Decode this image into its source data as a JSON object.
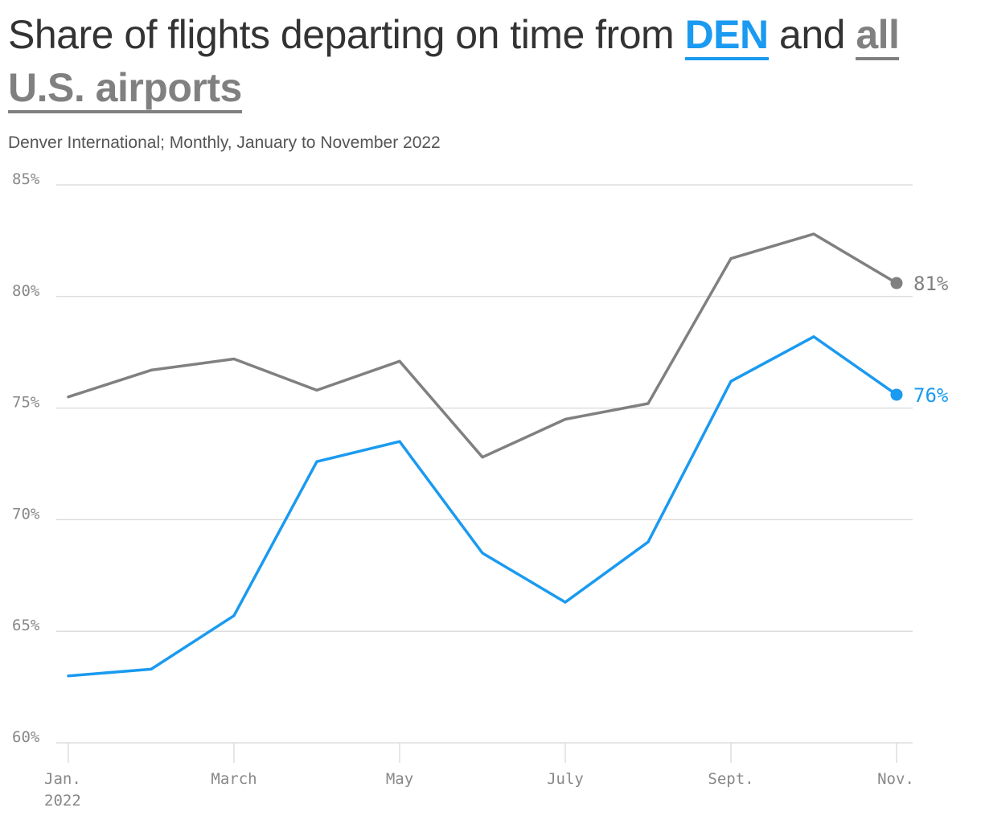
{
  "title": {
    "prefix": "Share of flights departing on time from ",
    "den": "DEN",
    "middle": " and ",
    "us": "all U.S. airports"
  },
  "subtitle": "Denver International; Monthly, January to November 2022",
  "colors": {
    "den": "#1a9af0",
    "us": "#808080",
    "grid": "#dddddd",
    "text": "#333333"
  },
  "chart_data": {
    "type": "line",
    "x": [
      "Jan. 2022",
      "Feb. 2022",
      "March 2022",
      "April 2022",
      "May 2022",
      "June 2022",
      "July 2022",
      "Aug. 2022",
      "Sept. 2022",
      "Oct. 2022",
      "Nov. 2022"
    ],
    "x_tick_labels": [
      {
        "index": 0,
        "lines": [
          "Jan.",
          "2022"
        ]
      },
      {
        "index": 2,
        "lines": [
          "March"
        ]
      },
      {
        "index": 4,
        "lines": [
          "May"
        ]
      },
      {
        "index": 6,
        "lines": [
          "July"
        ]
      },
      {
        "index": 8,
        "lines": [
          "Sept."
        ]
      },
      {
        "index": 10,
        "lines": [
          "Nov."
        ]
      }
    ],
    "y_ticks": [
      60,
      65,
      70,
      75,
      80,
      85
    ],
    "y_tick_labels": [
      "60%",
      "65%",
      "70%",
      "75%",
      "80%",
      "85%"
    ],
    "ylim": [
      60,
      85
    ],
    "grid": true,
    "series": [
      {
        "key": "us",
        "values": [
          75.5,
          76.7,
          77.2,
          75.8,
          77.1,
          72.8,
          74.5,
          75.2,
          81.7,
          82.8,
          80.6
        ],
        "end_label": "81%"
      },
      {
        "key": "den",
        "values": [
          63.0,
          63.3,
          65.7,
          72.6,
          73.5,
          68.5,
          66.3,
          69.0,
          76.2,
          78.2,
          75.6
        ],
        "end_label": "76%"
      }
    ]
  }
}
